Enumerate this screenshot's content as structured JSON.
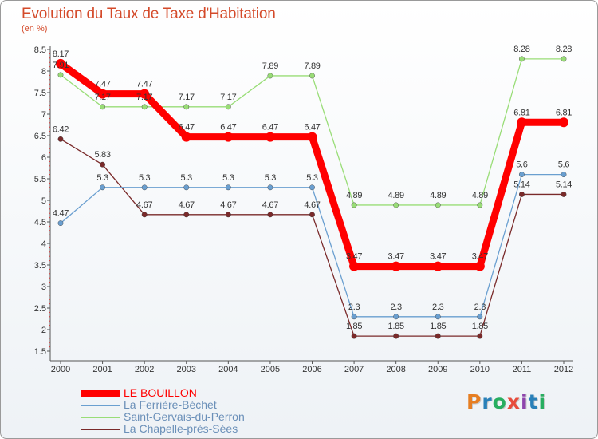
{
  "chart_data": {
    "type": "line",
    "title": "Evolution du Taux de Taxe d'Habitation",
    "subtitle": "(en %)",
    "x": [
      "2000",
      "2001",
      "2002",
      "2003",
      "2004",
      "2005",
      "2006",
      "2007",
      "2008",
      "2009",
      "2010",
      "2011",
      "2012"
    ],
    "y_ticks": [
      "1.5",
      "2",
      "2.5",
      "3",
      "3.5",
      "4",
      "4.5",
      "5",
      "5.5",
      "6",
      "6.5",
      "7",
      "7.5",
      "8",
      "8.5"
    ],
    "ylim": [
      1.5,
      8.5
    ],
    "grid": false,
    "legend_position": "bottom-left",
    "series": [
      {
        "name": "LE BOUILLON",
        "color": "#ff0000",
        "values": [
          8.17,
          7.47,
          7.47,
          6.47,
          6.47,
          6.47,
          6.47,
          3.47,
          3.47,
          3.47,
          3.47,
          6.81,
          6.81
        ],
        "labels": [
          "8.17",
          "7.47",
          "7.47",
          "6.47",
          "6.47",
          "6.47",
          "6.47",
          "3.47",
          "3.47",
          "3.47",
          "3.47",
          "6.81",
          "6.81"
        ]
      },
      {
        "name": "La Ferrière-Béchet",
        "color": "#6a9fd0",
        "values": [
          4.47,
          5.3,
          5.3,
          5.3,
          5.3,
          5.3,
          5.3,
          2.3,
          2.3,
          2.3,
          2.3,
          5.6,
          5.6
        ],
        "labels": [
          "4.47",
          "5.3",
          "5.3",
          "5.3",
          "5.3",
          "5.3",
          "5.3",
          "2.3",
          "2.3",
          "2.3",
          "2.3",
          "5.6",
          "5.6"
        ]
      },
      {
        "name": "Saint-Gervais-du-Perron",
        "color": "#99dd77",
        "values": [
          7.91,
          7.17,
          7.17,
          7.17,
          7.17,
          7.89,
          7.89,
          4.89,
          4.89,
          4.89,
          4.89,
          8.28,
          8.28
        ],
        "labels": [
          "7.91",
          "7.17",
          "7.17",
          "7.17",
          "7.17",
          "7.89",
          "7.89",
          "4.89",
          "4.89",
          "4.89",
          "4.89",
          "8.28",
          "8.28"
        ]
      },
      {
        "name": "La Chapelle-près-Sées",
        "color": "#7a2a2a",
        "values": [
          6.42,
          5.83,
          4.67,
          4.67,
          4.67,
          4.67,
          4.67,
          1.85,
          1.85,
          1.85,
          1.85,
          5.14,
          5.14
        ],
        "labels": [
          "6.42",
          "5.83",
          "4.67",
          "4.67",
          "4.67",
          "4.67",
          "4.67",
          "1.85",
          "1.85",
          "1.85",
          "1.85",
          "5.14",
          "5.14"
        ]
      }
    ]
  },
  "logo": {
    "text": "Proxiti",
    "colors": [
      "#e67e22",
      "#2980b9",
      "#27ae60",
      "#e74c3c",
      "#8e44ad",
      "#2980b9",
      "#27ae60"
    ]
  }
}
